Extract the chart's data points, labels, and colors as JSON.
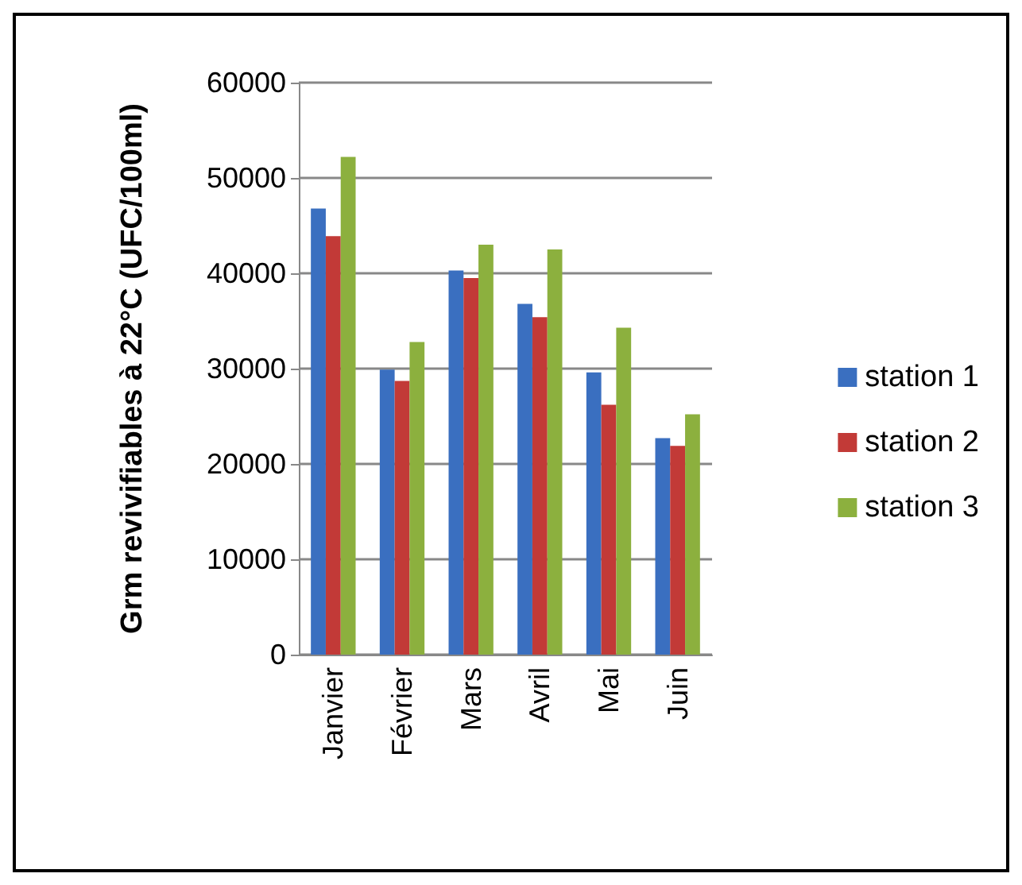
{
  "chart_data": {
    "type": "bar",
    "ylabel": "Grm revivifiables à 22°C (UFC/100ml)",
    "categories": [
      "Janvier",
      "Février",
      "Mars",
      "Avril",
      "Mai",
      "Juin"
    ],
    "series": [
      {
        "name": "station 1",
        "color": "#3a6fc0",
        "values": [
          46800,
          29900,
          40300,
          36800,
          29600,
          22700
        ]
      },
      {
        "name": "station 2",
        "color": "#c23a37",
        "values": [
          43900,
          28700,
          39500,
          35400,
          26200,
          21900
        ]
      },
      {
        "name": "station 3",
        "color": "#8cb03e",
        "values": [
          52200,
          32800,
          43000,
          42500,
          34300,
          25200
        ]
      }
    ],
    "ylim": [
      0,
      60000
    ],
    "yticks": [
      0,
      10000,
      20000,
      30000,
      40000,
      50000,
      60000
    ],
    "grid": "y",
    "legend": "right"
  }
}
